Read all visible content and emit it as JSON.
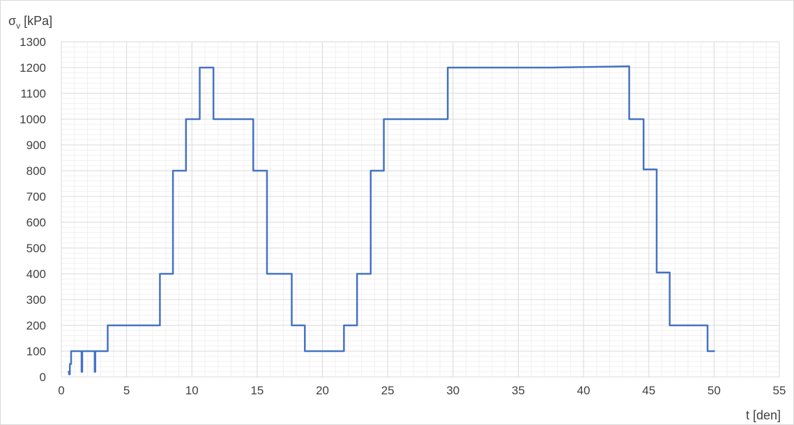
{
  "chart_data": {
    "type": "line",
    "title": "",
    "ylabel": "σ",
    "ylabel_sub": "v",
    "ylabel_unit": " [kPa]",
    "xlabel": "t [den]",
    "xlim": [
      0,
      55
    ],
    "ylim": [
      0,
      1300
    ],
    "x_major_step": 5,
    "x_minor_step": 1,
    "y_major_step": 100,
    "y_minor_step": 20,
    "x_ticks": [
      "0",
      "5",
      "10",
      "15",
      "20",
      "25",
      "30",
      "35",
      "40",
      "45",
      "50",
      "55"
    ],
    "y_ticks": [
      "0",
      "100",
      "200",
      "300",
      "400",
      "500",
      "600",
      "700",
      "800",
      "900",
      "1000",
      "1100",
      "1200",
      "1300"
    ],
    "grid": true,
    "legend": "none",
    "series": [
      {
        "color": "#4472C4",
        "x": [
          0.55,
          0.6,
          0.6,
          0.65,
          0.65,
          0.75,
          0.75,
          1.55,
          1.55,
          1.6,
          1.6,
          2.55,
          2.55,
          2.6,
          2.6,
          3.55,
          3.55,
          7.55,
          7.55,
          8.55,
          8.55,
          9.55,
          9.55,
          10.6,
          10.6,
          11.65,
          11.65,
          14.7,
          14.7,
          15.75,
          15.75,
          17.65,
          17.65,
          18.65,
          18.65,
          21.65,
          21.65,
          22.65,
          22.65,
          23.7,
          23.7,
          24.7,
          24.7,
          28.8,
          29.6,
          29.6,
          37.5,
          43.5,
          43.5,
          44.6,
          44.6,
          45.6,
          45.6,
          46.6,
          46.6,
          49.5,
          49.5,
          50.0
        ],
        "y": [
          20,
          20,
          10,
          10,
          50,
          50,
          100,
          100,
          20,
          20,
          100,
          100,
          20,
          20,
          100,
          100,
          200,
          200,
          400,
          400,
          800,
          800,
          1000,
          1000,
          1200,
          1200,
          1000,
          1000,
          800,
          800,
          400,
          400,
          200,
          200,
          100,
          100,
          200,
          200,
          400,
          400,
          800,
          800,
          1000,
          1000,
          1000,
          1200,
          1200,
          1205,
          1000,
          1000,
          805,
          805,
          405,
          405,
          200,
          200,
          100,
          100
        ]
      }
    ]
  }
}
